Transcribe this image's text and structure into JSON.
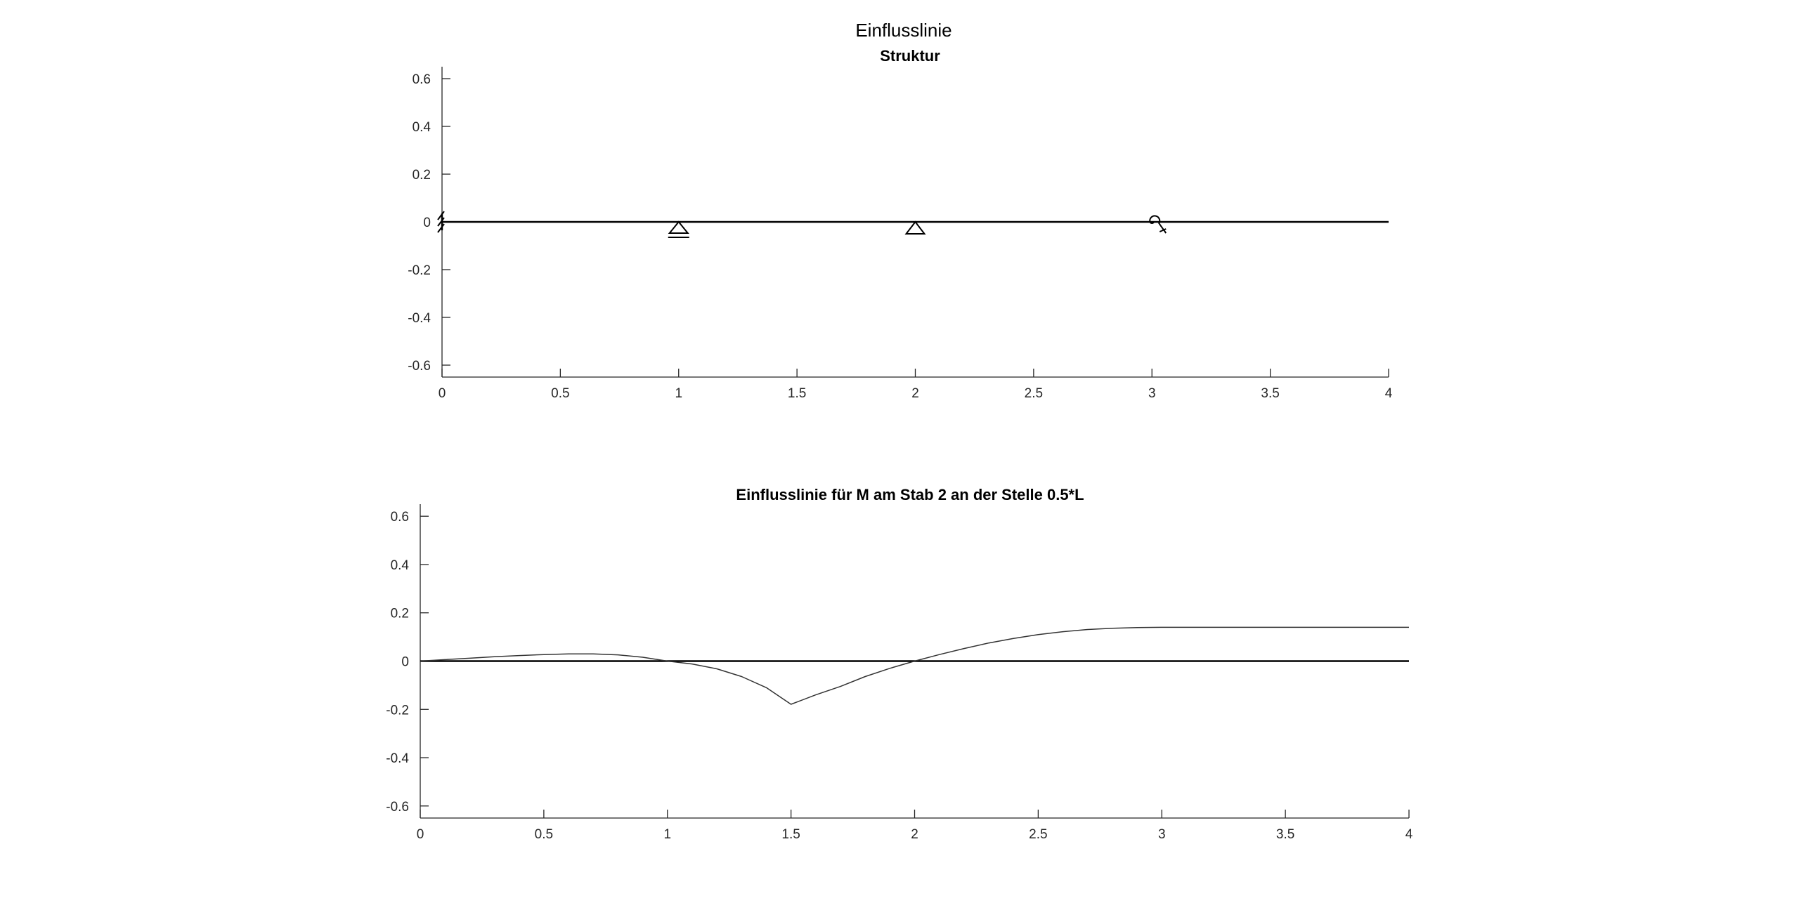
{
  "figure": {
    "suptitle": "Einflusslinie"
  },
  "chart_data": [
    {
      "type": "line",
      "title": "Struktur",
      "xlabel": "",
      "ylabel": "",
      "xlim": [
        0,
        4
      ],
      "ylim": [
        -0.65,
        0.65
      ],
      "xticks": [
        0,
        0.5,
        1,
        1.5,
        2,
        2.5,
        3,
        3.5,
        4
      ],
      "xtick_labels": [
        "0",
        "0.5",
        "1",
        "1.5",
        "2",
        "2.5",
        "3",
        "3.5",
        "4"
      ],
      "yticks": [
        -0.6,
        -0.4,
        -0.2,
        0,
        0.2,
        0.4,
        0.6
      ],
      "ytick_labels": [
        "-0.6",
        "-0.4",
        "-0.2",
        "0",
        "0.2",
        "0.4",
        "0.6"
      ],
      "grid": false,
      "beam": {
        "x": [
          0,
          4
        ],
        "y": [
          0,
          0
        ]
      },
      "supports": [
        {
          "type": "fixed-support",
          "x": 0
        },
        {
          "type": "roller-support",
          "x": 1
        },
        {
          "type": "pinned-support",
          "x": 2
        },
        {
          "type": "rotational-spring",
          "x": 3
        }
      ]
    },
    {
      "type": "line",
      "title": "Einflusslinie für M am Stab 2 an der Stelle 0.5*L",
      "xlabel": "",
      "ylabel": "",
      "xlim": [
        0,
        4
      ],
      "ylim": [
        -0.65,
        0.65
      ],
      "xticks": [
        0,
        0.5,
        1,
        1.5,
        2,
        2.5,
        3,
        3.5,
        4
      ],
      "xtick_labels": [
        "0",
        "0.5",
        "1",
        "1.5",
        "2",
        "2.5",
        "3",
        "3.5",
        "4"
      ],
      "yticks": [
        -0.6,
        -0.4,
        -0.2,
        0,
        0.2,
        0.4,
        0.6
      ],
      "ytick_labels": [
        "-0.6",
        "-0.4",
        "-0.2",
        "0",
        "0.2",
        "0.4",
        "0.6"
      ],
      "grid": false,
      "baseline": {
        "x": [
          0,
          4
        ],
        "y": [
          0,
          0
        ]
      },
      "series": [
        {
          "x": [
            0,
            0.1,
            0.2,
            0.3,
            0.4,
            0.5,
            0.6,
            0.7,
            0.8,
            0.9,
            1.0,
            1.1,
            1.2,
            1.3,
            1.4,
            1.5,
            1.6,
            1.7,
            1.8,
            1.9,
            2.0,
            2.1,
            2.2,
            2.3,
            2.4,
            2.5,
            2.6,
            2.7,
            2.8,
            2.9,
            3.0,
            3.25,
            3.5,
            3.75,
            4.0
          ],
          "y": [
            0,
            0.006,
            0.012,
            0.018,
            0.023,
            0.027,
            0.03,
            0.03,
            0.026,
            0.016,
            0,
            -0.012,
            -0.032,
            -0.064,
            -0.11,
            -0.179,
            -0.14,
            -0.105,
            -0.064,
            -0.03,
            0,
            0.027,
            0.052,
            0.075,
            0.094,
            0.11,
            0.122,
            0.131,
            0.136,
            0.139,
            0.14,
            0.14,
            0.14,
            0.14,
            0.14
          ]
        }
      ]
    }
  ]
}
